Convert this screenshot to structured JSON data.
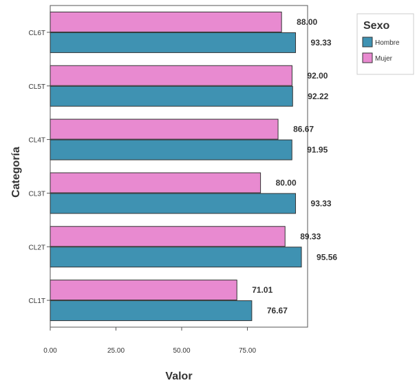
{
  "chart_data": {
    "type": "bar",
    "orientation": "horizontal",
    "categories": [
      "CL1T",
      "CL2T",
      "CL3T",
      "CL4T",
      "CL5T",
      "CL6T"
    ],
    "series": [
      {
        "name": "Hombre",
        "color": "#3f92b2",
        "values": [
          76.67,
          95.56,
          93.33,
          91.95,
          92.22,
          93.33
        ],
        "labels": [
          "76.67",
          "95.56",
          "93.33",
          "91.95",
          "92.22",
          "93.33"
        ]
      },
      {
        "name": "Mujer",
        "color": "#e88ad0",
        "values": [
          71.01,
          89.33,
          80.0,
          86.67,
          92.0,
          88.0
        ],
        "labels": [
          "71.01",
          "89.33",
          "80.00",
          "86.67",
          "92.00",
          "88.00"
        ]
      }
    ],
    "xlabel": "Valor",
    "ylabel": "Categoría",
    "xlim": [
      0,
      100
    ],
    "xticks": [
      0,
      25,
      50,
      75
    ],
    "xtick_labels": [
      "0.00",
      "25.00",
      "50.00",
      "75.00"
    ],
    "legend": {
      "title": "Sexo",
      "placement": "top-right",
      "entries": [
        "Hombre",
        "Mujer"
      ]
    },
    "grid": false
  }
}
